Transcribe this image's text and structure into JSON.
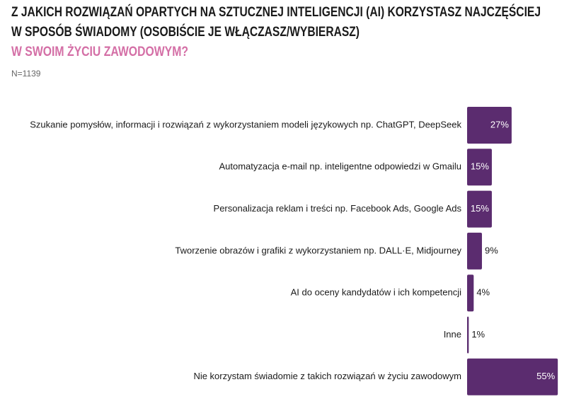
{
  "chart_data": {
    "type": "bar",
    "orientation": "horizontal",
    "title_lines": [
      {
        "text": "Z JAKICH ROZWIĄZAŃ OPARTYCH NA SZTUCZNEJ INTELIGENCJI (AI) KORZYSTASZ NAJCZĘŚCIEJ",
        "color": "#1a1a1a"
      },
      {
        "text": "W SPOSÓB ŚWIADOMY (OSOBIŚCIE JE WŁĄCZASZ/WYBIERASZ)",
        "color": "#1a1a1a"
      },
      {
        "text": "W SWOIM ŻYCIU ZAWODOWYM?",
        "color": "#d46fa6"
      }
    ],
    "subtitle": "N=1139",
    "categories": [
      "Szukanie pomysłów, informacji i rozwiązań z wykorzystaniem modeli językowych np. ChatGPT, DeepSeek",
      "Automatyzacja e-mail np. inteligentne odpowiedzi w Gmailu",
      "Personalizacja reklam i treści np. Facebook Ads, Google Ads",
      "Tworzenie obrazów i grafiki z wykorzystaniem np. DALL·E, Midjourney",
      "AI do oceny kandydatów i ich kompetencji",
      "Inne",
      "Nie korzystam świadomie z takich rozwiązań w życiu zawodowym"
    ],
    "values": [
      27,
      15,
      15,
      9,
      4,
      1,
      55
    ],
    "value_labels": [
      "27%",
      "15%",
      "15%",
      "9%",
      "4%",
      "1%",
      "55%"
    ],
    "color": "#5b2c6f"
  }
}
